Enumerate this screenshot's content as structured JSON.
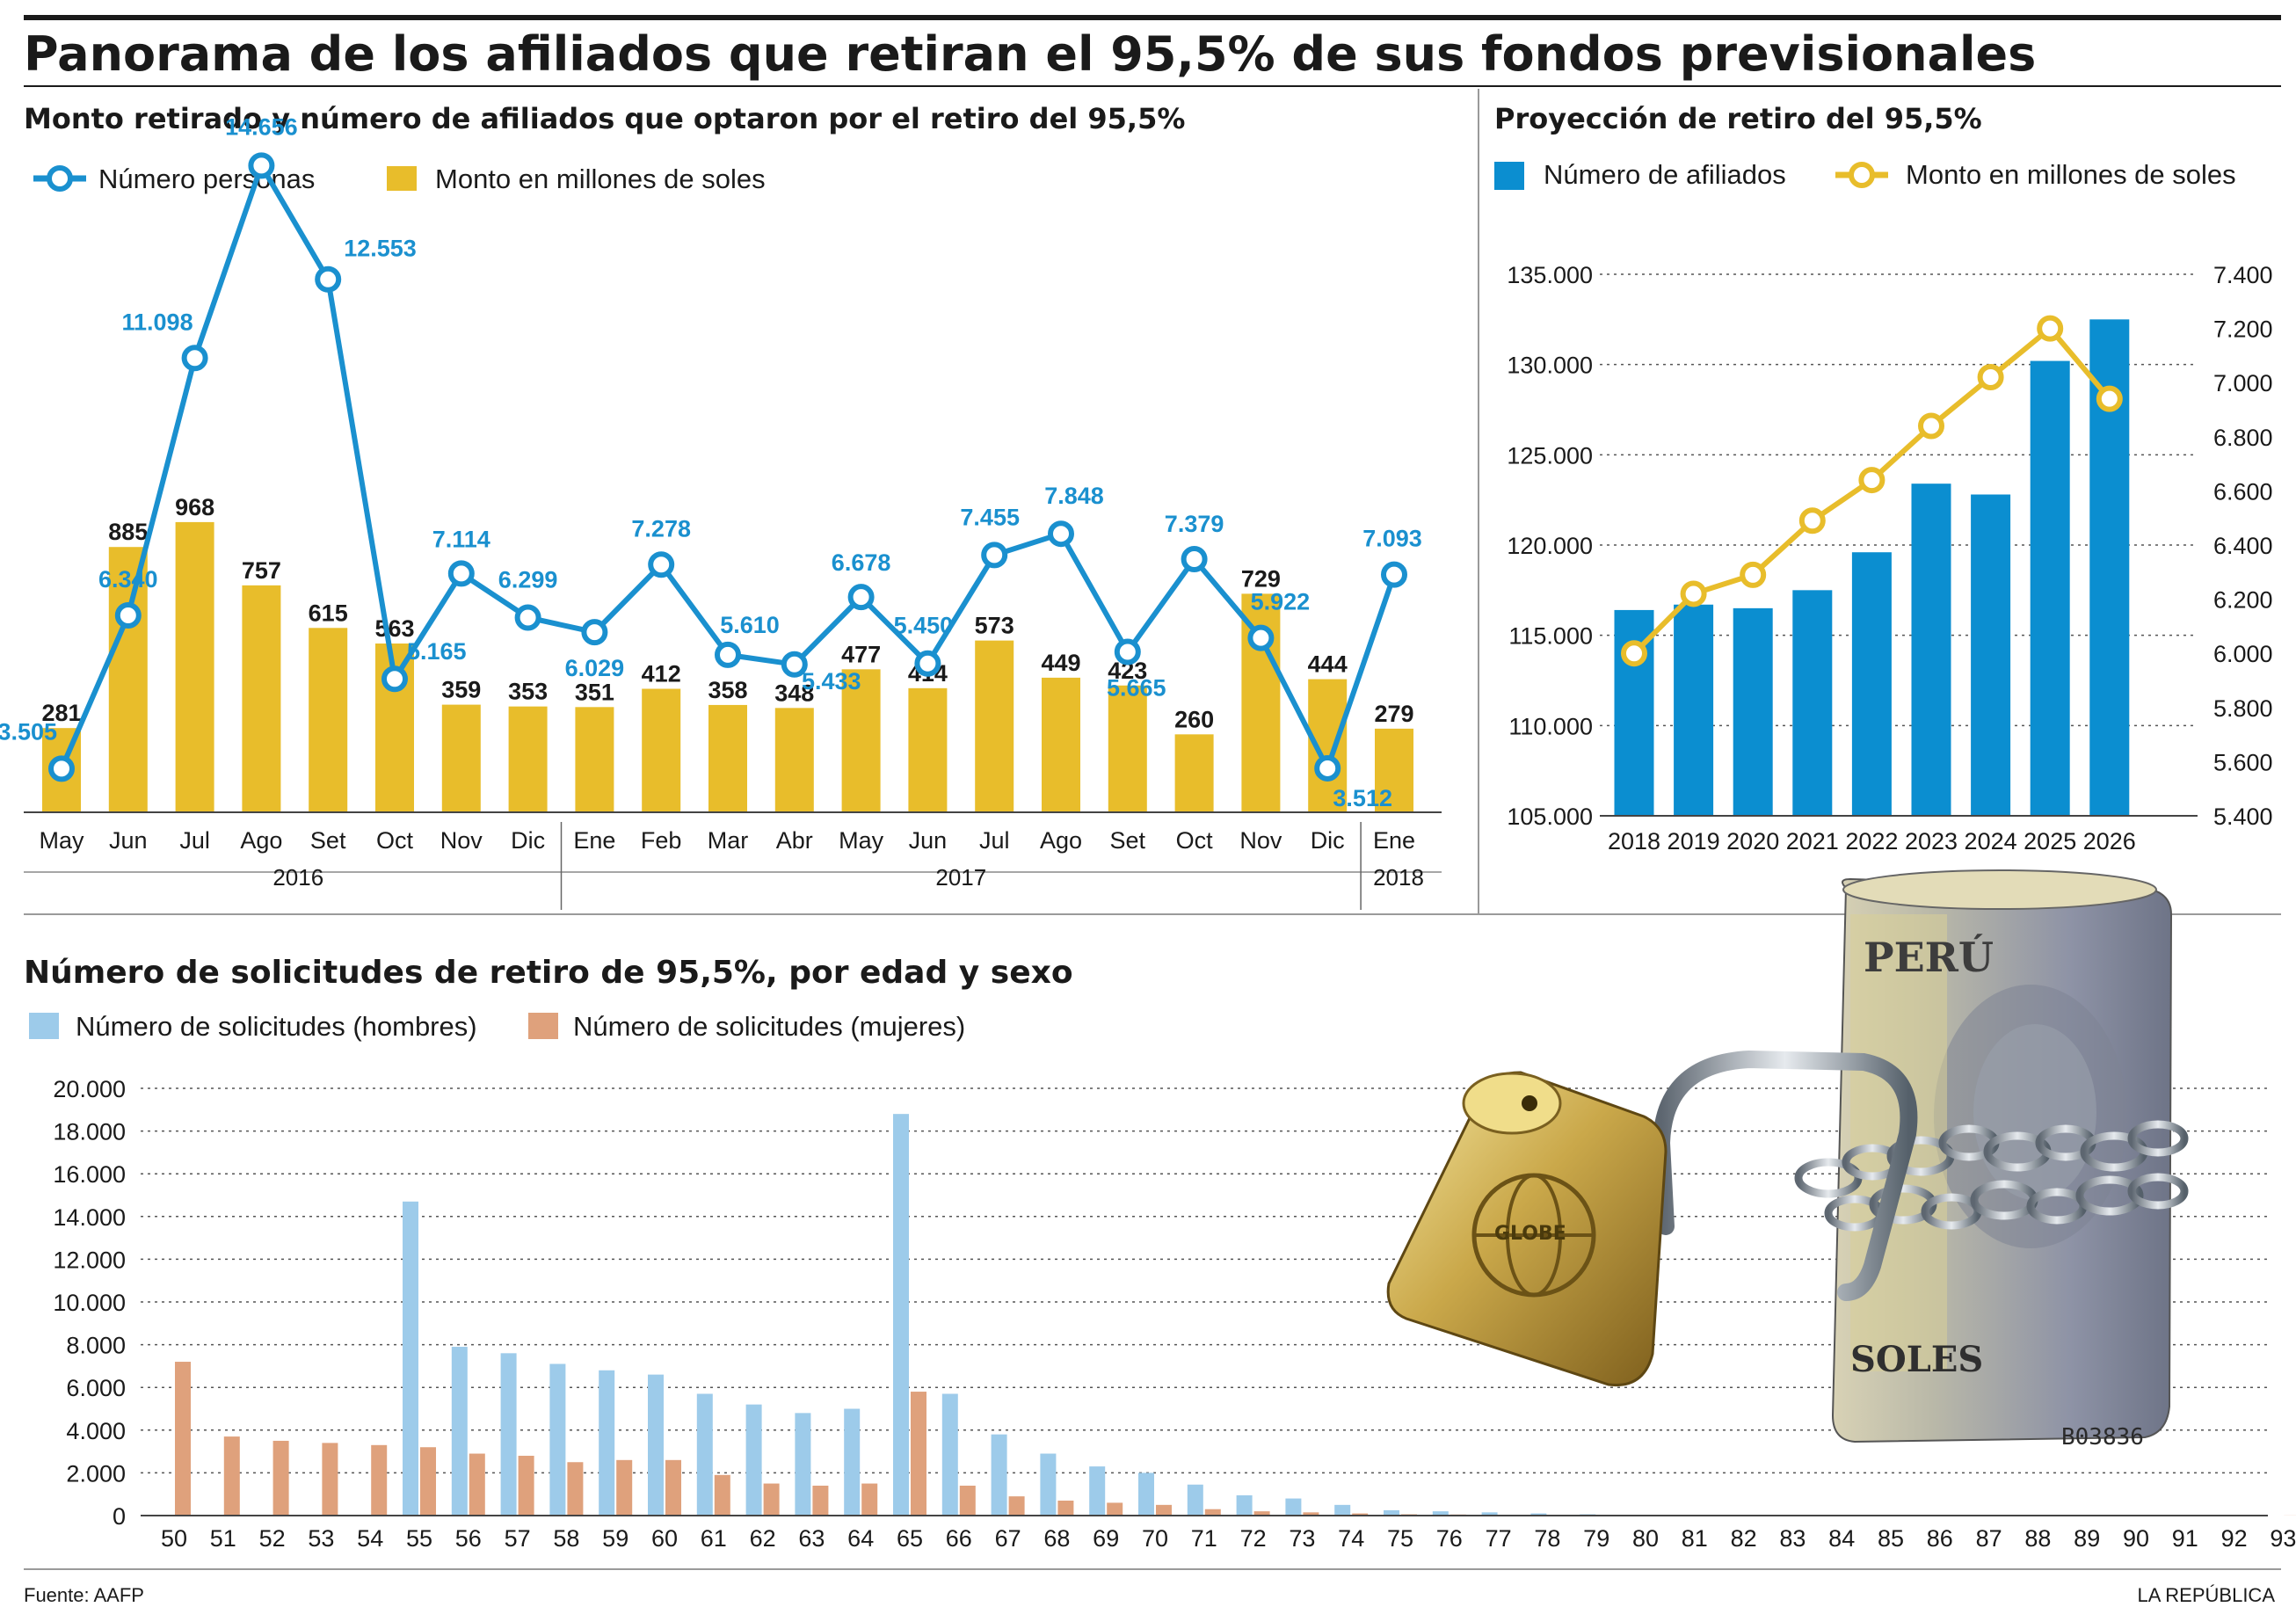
{
  "title": "Panorama de los afiliados que retiran el 95,5% de sus fondos previsionales",
  "source": "Fuente: AAFP",
  "brand": "LA REPÚBLICA",
  "colors": {
    "blue": "#1a90cf",
    "gold": "#e8bd2b",
    "barblue": "#0b8ed0",
    "lightblue": "#9dcbea",
    "salmon": "#dfa17c",
    "text": "#1a1a1a"
  },
  "illustration": {
    "alt": "padlock-and-chained-banknotes",
    "banknote_text": "PERÚ",
    "banknote_text2": "SOLES",
    "banknote_serial": "B03836",
    "padlock_text": "GLOBE"
  },
  "chart_data": [
    {
      "type": "bar+line",
      "title": "Monto retirado y número de afiliados que optaron por el retiro del 95,5%",
      "legend": {
        "line": "Número personas",
        "bars": "Monto en millones de soles"
      },
      "categories": [
        "May",
        "Jun",
        "Jul",
        "Ago",
        "Set",
        "Oct",
        "Nov",
        "Dic",
        "Ene",
        "Feb",
        "Mar",
        "Abr",
        "May",
        "Jun",
        "Jul",
        "Ago",
        "Set",
        "Oct",
        "Nov",
        "Dic",
        "Ene"
      ],
      "year_groups": [
        {
          "label": "2016",
          "from": 0,
          "to": 7
        },
        {
          "label": "2017",
          "from": 8,
          "to": 19
        },
        {
          "label": "2018",
          "from": 20,
          "to": 20
        }
      ],
      "series": [
        {
          "name": "Monto en millones de soles",
          "kind": "bar",
          "values": [
            281,
            885,
            968,
            757,
            615,
            563,
            359,
            353,
            351,
            412,
            358,
            348,
            477,
            414,
            573,
            449,
            423,
            260,
            729,
            444,
            279
          ],
          "labels": [
            "281",
            "885",
            "968",
            "757",
            "615",
            "563",
            "359",
            "353",
            "351",
            "412",
            "358",
            "348",
            "477",
            "414",
            "573",
            "449",
            "423",
            "260",
            "729",
            "444",
            "279"
          ]
        },
        {
          "name": "Número personas",
          "kind": "line",
          "values": [
            3505,
            6340,
            11098,
            14656,
            12553,
            5165,
            7114,
            6299,
            6029,
            7278,
            5610,
            5433,
            6678,
            5450,
            7455,
            7848,
            5665,
            7379,
            5922,
            3512,
            7093
          ],
          "labels": [
            "3.505",
            "6.340",
            "11.098",
            "14.656",
            "12.553",
            "5.165",
            "7.114",
            "6.299",
            "6.029",
            "7.278",
            "5.610",
            "5.433",
            "6.678",
            "5.450",
            "7.455",
            "7.848",
            "5.665",
            "7.379",
            "5.922",
            "3.512",
            "7.093"
          ]
        }
      ]
    },
    {
      "type": "bar+line",
      "title": "Proyección de retiro del 95,5%",
      "legend": {
        "bars": "Número de afiliados",
        "line": "Monto en millones de soles"
      },
      "categories": [
        "2018",
        "2019",
        "2020",
        "2021",
        "2022",
        "2023",
        "2024",
        "2025",
        "2026"
      ],
      "left_axis": {
        "min": 105000,
        "max": 135000,
        "ticks": [
          "105.000",
          "110.000",
          "115.000",
          "120.000",
          "125.000",
          "130.000",
          "135.000"
        ]
      },
      "right_axis": {
        "min": 5400,
        "max": 7400,
        "ticks": [
          "5.400",
          "5.600",
          "5.800",
          "6.000",
          "6.200",
          "6.400",
          "6.600",
          "6.800",
          "7.000",
          "7.200",
          "7.400"
        ]
      },
      "series": [
        {
          "name": "Número de afiliados",
          "kind": "bar",
          "values": [
            116400,
            116700,
            116500,
            117500,
            119600,
            123400,
            122800,
            130200,
            132500
          ]
        },
        {
          "name": "Monto en millones de soles",
          "kind": "line",
          "values": [
            6000,
            6220,
            6290,
            6490,
            6640,
            6840,
            7020,
            7200,
            6940
          ]
        }
      ]
    },
    {
      "type": "bar",
      "title": "Número de solicitudes de retiro de 95,5%, por edad y sexo",
      "categories": [
        "50",
        "51",
        "52",
        "53",
        "54",
        "55",
        "56",
        "57",
        "58",
        "59",
        "60",
        "61",
        "62",
        "63",
        "64",
        "65",
        "66",
        "67",
        "68",
        "69",
        "70",
        "71",
        "72",
        "73",
        "74",
        "75",
        "76",
        "77",
        "78",
        "79",
        "80",
        "81",
        "82",
        "83",
        "84",
        "85",
        "86",
        "87",
        "88",
        "89",
        "90",
        "91",
        "92",
        "93"
      ],
      "y_axis": {
        "min": 0,
        "max": 20000,
        "ticks": [
          "0",
          "2.000",
          "4.000",
          "6.000",
          "8.000",
          "10.000",
          "12.000",
          "14.000",
          "16.000",
          "18.000",
          "20.000"
        ]
      },
      "series": [
        {
          "name": "Número de solicitudes (hombres)",
          "values": [
            0,
            0,
            0,
            0,
            0,
            14700,
            7900,
            7600,
            7100,
            6800,
            6600,
            5700,
            5200,
            4800,
            5000,
            18800,
            5700,
            3800,
            2900,
            2300,
            2000,
            1450,
            950,
            800,
            500,
            250,
            200,
            150,
            100,
            60,
            40,
            30,
            20,
            15,
            10,
            5,
            5,
            5,
            0,
            0,
            0,
            0,
            0,
            0
          ]
        },
        {
          "name": "Número de solicitudes (mujeres)",
          "values": [
            7200,
            3700,
            3500,
            3400,
            3300,
            3200,
            2900,
            2800,
            2500,
            2600,
            2600,
            1900,
            1500,
            1400,
            1500,
            5800,
            1400,
            900,
            700,
            600,
            500,
            300,
            200,
            150,
            100,
            60,
            50,
            40,
            30,
            20,
            10,
            10,
            5,
            5,
            5,
            5,
            5,
            5,
            5,
            5,
            5,
            5,
            5,
            5
          ]
        }
      ]
    }
  ],
  "y_axis_ticks_bottom": [
    "0",
    "2.000",
    "4.000",
    "6.000",
    "8.000",
    "10.000",
    "12.000",
    "14.000",
    "16.000",
    "18.000",
    "20.000"
  ]
}
